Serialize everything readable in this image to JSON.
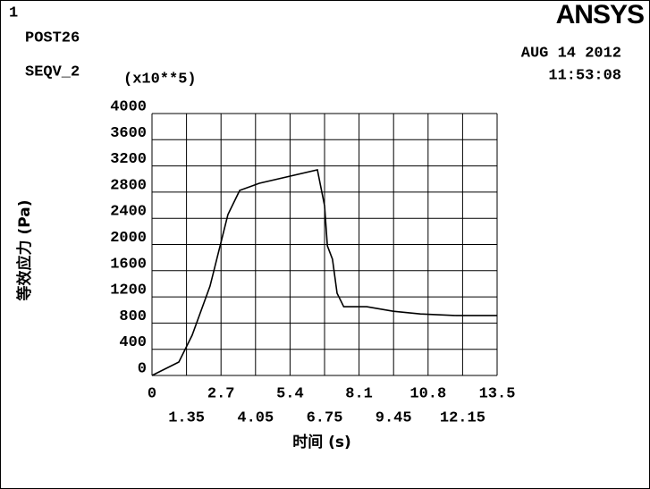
{
  "header": {
    "window_number": "1",
    "program": "POST26",
    "variable": "SEQV_2",
    "multiplier": "(x10**5)",
    "date": "AUG 14 2012",
    "time": "11:53:08",
    "logo": "ANSYS"
  },
  "chart_data": {
    "type": "line",
    "xlabel": "时间 (s)",
    "ylabel": "等效应力 (Pa)",
    "x": [
      0,
      1.05,
      1.57,
      2.27,
      2.97,
      3.43,
      4.2,
      6.47,
      6.75,
      6.86,
      7.06,
      7.24,
      7.5,
      8.4,
      9.44,
      10.5,
      11.9,
      13.5
    ],
    "series": [
      {
        "name": "SEQV_2",
        "color": "#000000",
        "values": [
          0,
          205,
          614,
          1365,
          2457,
          2826,
          2935,
          3140,
          2594,
          1980,
          1775,
          1256,
          1050,
          1050,
          980,
          940,
          915,
          915
        ]
      }
    ],
    "xlim": [
      0,
      13.5
    ],
    "xticks": [
      0,
      1.35,
      2.7,
      4.05,
      5.4,
      6.75,
      8.1,
      9.45,
      10.8,
      12.15,
      13.5
    ],
    "ylim": [
      0,
      4000
    ],
    "yticks": [
      0,
      400,
      800,
      1200,
      1600,
      2000,
      2400,
      2800,
      3200,
      3600,
      4000
    ],
    "grid": true
  }
}
